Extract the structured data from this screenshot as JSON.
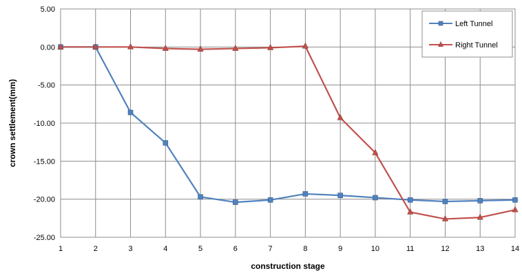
{
  "chart_data": {
    "type": "line",
    "title": "",
    "xlabel": "construction stage",
    "ylabel": "crown settlement(mm)",
    "x": [
      1,
      2,
      3,
      4,
      5,
      6,
      7,
      8,
      9,
      10,
      11,
      12,
      13,
      14
    ],
    "xlim": [
      1,
      14
    ],
    "ylim": [
      -25,
      5
    ],
    "ytick_labels": [
      "5.00",
      "0.00",
      "-5.00",
      "-10.00",
      "-15.00",
      "-20.00",
      "-25.00"
    ],
    "xtick_labels": [
      "1",
      "2",
      "3",
      "4",
      "5",
      "6",
      "7",
      "8",
      "9",
      "10",
      "11",
      "12",
      "13",
      "14"
    ],
    "grid": true,
    "legend_position": "top-right",
    "series": [
      {
        "name": "Left Tunnel",
        "color": "#4f81bd",
        "marker": "square",
        "values": [
          0.0,
          0.0,
          -8.6,
          -12.6,
          -19.7,
          -20.4,
          -20.1,
          -19.3,
          -19.5,
          -19.8,
          -20.1,
          -20.3,
          -20.2,
          -20.1
        ]
      },
      {
        "name": "Right Tunnel",
        "color": "#c0504d",
        "marker": "triangle",
        "values": [
          0.0,
          0.0,
          0.0,
          -0.2,
          -0.3,
          -0.2,
          -0.1,
          0.1,
          -9.3,
          -13.9,
          -21.7,
          -22.6,
          -22.4,
          -21.4
        ]
      }
    ]
  }
}
